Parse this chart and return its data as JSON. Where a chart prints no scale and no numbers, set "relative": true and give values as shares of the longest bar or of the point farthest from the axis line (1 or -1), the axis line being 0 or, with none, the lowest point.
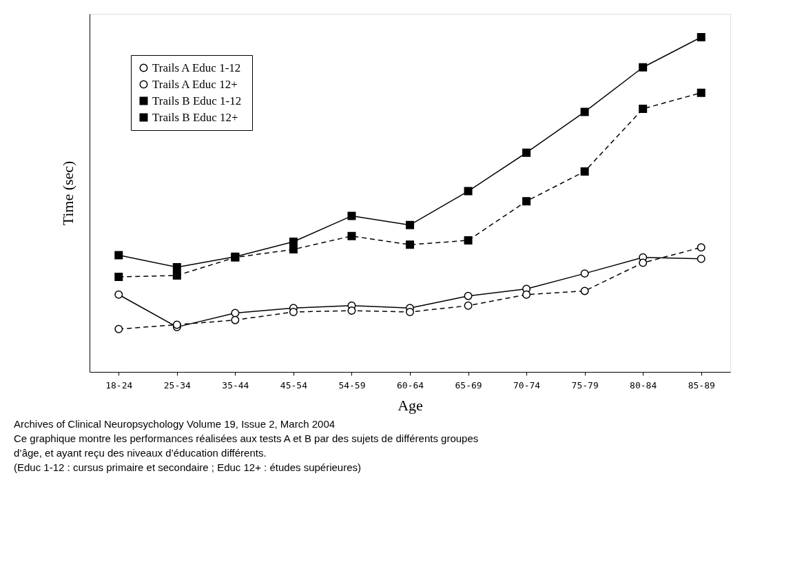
{
  "chart_data": {
    "type": "line",
    "relative": true,
    "xlabel": "Age",
    "ylabel": "Time (sec)",
    "legend": "top left",
    "grid": false,
    "categories": [
      "18-24",
      "25-34",
      "35-44",
      "45-54",
      "54-59",
      "60-64",
      "65-69",
      "70-74",
      "75-79",
      "80-84",
      "85-89"
    ],
    "series": [
      {
        "name": "Trails A  Educ 1-12",
        "color": "#000000",
        "marker": "circle",
        "line_style": "solid",
        "values": [
          0.231,
          0.134,
          0.176,
          0.191,
          0.198,
          0.191,
          0.227,
          0.248,
          0.294,
          0.342,
          0.338
        ]
      },
      {
        "name": "Trails A  Educ 12+",
        "color": "#000000",
        "marker": "circle",
        "line_style": "dashed",
        "values": [
          0.128,
          0.141,
          0.155,
          0.179,
          0.183,
          0.179,
          0.198,
          0.231,
          0.242,
          0.326,
          0.372
        ]
      },
      {
        "name": "Trails B  Educ 1-12",
        "color": "#000000",
        "marker": "square",
        "line_style": "solid",
        "values": [
          0.349,
          0.313,
          0.344,
          0.389,
          0.466,
          0.439,
          0.54,
          0.655,
          0.777,
          0.91,
          1
        ]
      },
      {
        "name": "Trails B  Educ 12+",
        "color": "#000000",
        "marker": "square",
        "line_style": "dashed",
        "values": [
          0.284,
          0.288,
          0.342,
          0.366,
          0.406,
          0.38,
          0.393,
          0.51,
          0.599,
          0.786,
          0.834
        ]
      }
    ],
    "annotations": [
      "Archives of Clinical Neuropsychology Volume 19, Issue 2, March 2004",
      "Ce graphique montre les performances réalisées aux tests A et B par des sujets de différents groupes d’âge, et ayant reçu des niveaux d’éducation différents.",
      "(Educ 1-12 : cursus primaire et secondaire ; Educ 12+ : études supérieures)"
    ]
  }
}
